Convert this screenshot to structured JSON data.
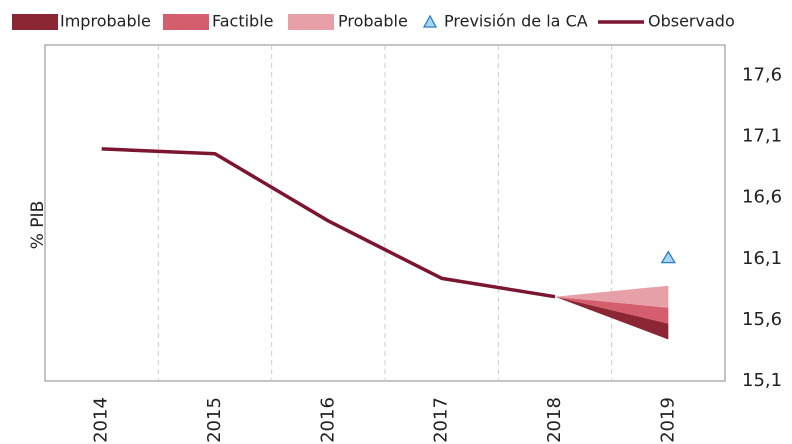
{
  "chart_data": {
    "type": "line",
    "y_label": "% PIB",
    "categories": [
      "2014",
      "2015",
      "2016",
      "2017",
      "2018",
      "2019"
    ],
    "series": [
      {
        "name": "Improbable",
        "color": "#8b2635",
        "kind": "band",
        "values": [
          null,
          null,
          null,
          null,
          15.79,
          15.57
        ],
        "lower": [
          null,
          null,
          null,
          null,
          15.79,
          15.44
        ]
      },
      {
        "name": "Factible",
        "color": "#d45d6e",
        "kind": "band",
        "values": [
          null,
          null,
          null,
          null,
          15.79,
          15.7
        ],
        "lower": [
          null,
          null,
          null,
          null,
          15.79,
          15.57
        ]
      },
      {
        "name": "Probable",
        "color": "#e8a0a8",
        "kind": "band",
        "values": [
          null,
          null,
          null,
          null,
          15.79,
          15.88
        ],
        "lower": [
          null,
          null,
          null,
          null,
          15.79,
          15.7
        ]
      },
      {
        "name": "Previsión de la CA",
        "color": "#a9d4f0",
        "kind": "marker",
        "values": [
          null,
          null,
          null,
          null,
          null,
          16.11
        ]
      },
      {
        "name": "Observado",
        "color": "#7b1530",
        "kind": "line",
        "values": [
          17.0,
          16.96,
          16.41,
          15.94,
          15.79,
          null
        ]
      }
    ],
    "ylim": [
      15.1,
      17.85
    ],
    "yticks": [
      {
        "value": 15.1,
        "label": "15,1"
      },
      {
        "value": 15.6,
        "label": "15,6"
      },
      {
        "value": 16.1,
        "label": "16,1"
      },
      {
        "value": 16.6,
        "label": "16,6"
      },
      {
        "value": 17.1,
        "label": "17,1"
      },
      {
        "value": 17.6,
        "label": "17,6"
      }
    ],
    "grid": true,
    "legend": "top"
  }
}
